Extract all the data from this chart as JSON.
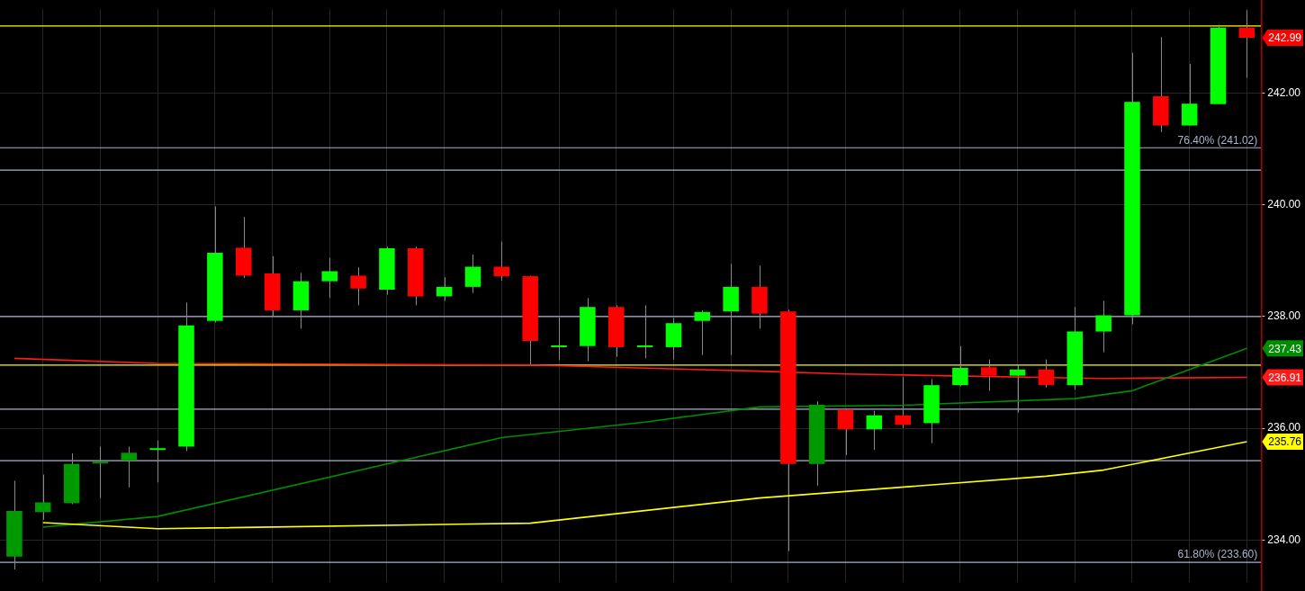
{
  "chart_data": {
    "type": "candlestick",
    "categories": [
      null,
      null,
      null,
      null,
      null,
      null,
      null,
      null,
      null,
      null,
      null,
      null,
      null,
      null,
      null,
      null,
      null,
      null,
      null,
      null,
      null,
      null,
      null,
      null,
      null,
      null,
      null,
      null,
      null,
      null,
      null,
      null,
      null,
      null,
      null,
      null,
      null,
      null,
      null,
      null,
      null,
      null,
      null,
      null
    ],
    "ohlc": [
      [
        233.7,
        235.06,
        233.47,
        234.52
      ],
      [
        234.5,
        235.17,
        234.36,
        234.67
      ],
      [
        234.66,
        235.55,
        234.64,
        235.36
      ],
      [
        235.37,
        235.67,
        234.75,
        235.39
      ],
      [
        235.42,
        235.67,
        234.94,
        235.56
      ],
      [
        235.61,
        235.78,
        235.03,
        235.64
      ],
      [
        235.67,
        238.25,
        235.59,
        237.84
      ],
      [
        237.92,
        239.97,
        237.89,
        239.14
      ],
      [
        239.23,
        239.78,
        238.69,
        238.73
      ],
      [
        238.77,
        239.08,
        238.0,
        238.11
      ],
      [
        238.11,
        238.78,
        237.78,
        238.63
      ],
      [
        238.63,
        239.05,
        238.33,
        238.81
      ],
      [
        238.73,
        238.88,
        238.2,
        238.5
      ],
      [
        238.48,
        239.25,
        238.39,
        239.22
      ],
      [
        239.22,
        239.25,
        238.2,
        238.36
      ],
      [
        238.36,
        238.7,
        238.28,
        238.53
      ],
      [
        238.53,
        239.11,
        238.42,
        238.89
      ],
      [
        238.89,
        239.34,
        238.64,
        238.72
      ],
      [
        238.72,
        238.73,
        237.14,
        237.56
      ],
      [
        237.45,
        237.98,
        237.22,
        237.47
      ],
      [
        237.47,
        238.33,
        237.2,
        238.17
      ],
      [
        238.17,
        238.2,
        237.28,
        237.45
      ],
      [
        237.45,
        238.2,
        237.25,
        237.48
      ],
      [
        237.45,
        237.97,
        237.23,
        237.88
      ],
      [
        237.92,
        238.11,
        237.31,
        238.08
      ],
      [
        238.09,
        238.94,
        237.31,
        238.53
      ],
      [
        238.53,
        238.91,
        237.78,
        238.05
      ],
      [
        238.09,
        238.12,
        233.8,
        235.36
      ],
      [
        235.36,
        236.48,
        234.97,
        236.42
      ],
      [
        236.33,
        236.35,
        235.52,
        235.98
      ],
      [
        235.98,
        236.31,
        235.61,
        236.23
      ],
      [
        236.23,
        236.92,
        236.0,
        236.06
      ],
      [
        236.09,
        236.88,
        235.73,
        236.77
      ],
      [
        236.77,
        237.47,
        236.75,
        237.08
      ],
      [
        237.09,
        237.23,
        236.67,
        236.94
      ],
      [
        236.94,
        237.13,
        236.28,
        237.05
      ],
      [
        237.05,
        237.23,
        236.73,
        236.77
      ],
      [
        236.77,
        238.17,
        236.69,
        237.73
      ],
      [
        237.73,
        238.28,
        237.36,
        238.02
      ],
      [
        238.02,
        242.72,
        237.86,
        241.84
      ],
      [
        241.94,
        243.0,
        241.3,
        241.42
      ],
      [
        241.42,
        242.52,
        241.42,
        241.81
      ],
      [
        241.8,
        243.22,
        241.8,
        243.17
      ],
      [
        243.17,
        243.48,
        242.27,
        242.99
      ]
    ],
    "colors": [
      "#009a00",
      "#009a00",
      "#009a00",
      "#009a00",
      "#009a00",
      "#00ff00",
      "#00ff00",
      "#00ff00",
      "#ff0000",
      "#ff0000",
      "#00ff00",
      "#00ff00",
      "#ff0000",
      "#00ff00",
      "#ff0000",
      "#00ff00",
      "#00ff00",
      "#ff0000",
      "#ff0000",
      "#00ff00",
      "#00ff00",
      "#ff0000",
      "#00ff00",
      "#00ff00",
      "#00ff00",
      "#00ff00",
      "#ff0000",
      "#ff0000",
      "#009a00",
      "#ff0000",
      "#00ff00",
      "#ff0000",
      "#00ff00",
      "#00ff00",
      "#ff0000",
      "#00ff00",
      "#ff0000",
      "#00ff00",
      "#00ff00",
      "#00ff00",
      "#ff0000",
      "#00ff00",
      "#00ff00",
      "#ff0000"
    ],
    "series": [
      {
        "type": "line",
        "color": "#ffff00",
        "values": [
          null,
          234.31,
          null,
          null,
          null,
          234.2,
          null,
          null,
          null,
          null,
          null,
          null,
          null,
          null,
          null,
          null,
          null,
          null,
          234.3,
          null,
          null,
          null,
          null,
          null,
          null,
          null,
          234.75,
          null,
          null,
          null,
          null,
          null,
          null,
          null,
          null,
          null,
          235.14,
          null,
          235.25,
          null,
          null,
          null,
          null,
          235.76
        ]
      },
      {
        "type": "line",
        "color": "#008c00",
        "values": [
          null,
          234.23,
          null,
          null,
          null,
          234.42,
          null,
          null,
          null,
          null,
          null,
          null,
          null,
          null,
          null,
          null,
          null,
          235.83,
          null,
          null,
          null,
          null,
          236.11,
          null,
          null,
          null,
          236.38,
          null,
          null,
          null,
          null,
          236.41,
          null,
          null,
          null,
          null,
          null,
          236.53,
          null,
          236.67,
          null,
          null,
          null,
          237.43
        ]
      },
      {
        "type": "line",
        "color": "#ff1a1a",
        "values": [
          237.25,
          null,
          null,
          null,
          null,
          237.16,
          null,
          null,
          null,
          null,
          null,
          null,
          null,
          null,
          null,
          null,
          null,
          null,
          237.13,
          null,
          null,
          null,
          null,
          null,
          null,
          null,
          237.02,
          null,
          null,
          236.97,
          null,
          null,
          null,
          null,
          null,
          null,
          null,
          null,
          236.89,
          null,
          null,
          null,
          null,
          236.91
        ]
      }
    ],
    "ylim": [
      233.25,
      243.5
    ],
    "yticks": [
      {
        "value": 234,
        "label": "234.00"
      },
      {
        "value": 236,
        "label": "236.00"
      },
      {
        "value": 238,
        "label": "238.00"
      },
      {
        "value": 240,
        "label": "240.00"
      },
      {
        "value": 242,
        "label": "242.00"
      }
    ],
    "grid": true,
    "ref_lines": [
      {
        "axis": "y",
        "value": 243.2,
        "color": "#ffff00"
      },
      {
        "axis": "y",
        "value": 237.13,
        "color": "#ffff00"
      },
      {
        "axis": "y",
        "value": 241.02,
        "label": "76.40% (241.02)",
        "color": "#a9b4cc"
      },
      {
        "axis": "y",
        "value": 240.62,
        "color": "#a9b4cc"
      },
      {
        "axis": "y",
        "value": 238.0,
        "color": "#a9b4cc"
      },
      {
        "axis": "y",
        "value": 236.34,
        "color": "#a9b4cc"
      },
      {
        "axis": "y",
        "value": 235.42,
        "color": "#a9b4cc"
      },
      {
        "axis": "y",
        "value": 233.6,
        "label": "61.80% (233.60)",
        "color": "#a9b4cc"
      }
    ],
    "annotations": [
      "242.99",
      "237.43",
      "236.91",
      "235.76"
    ]
  }
}
